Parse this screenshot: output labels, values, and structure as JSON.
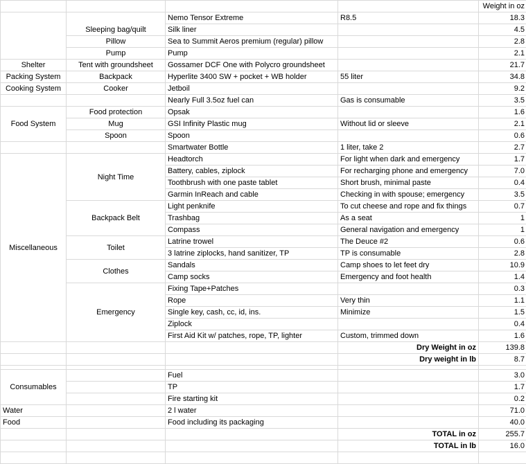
{
  "header": {
    "weight": "Weight in oz"
  },
  "rows": [
    {
      "item": "Nemo Tensor Extreme",
      "note": "R8.5",
      "weight": "18.3",
      "cat": {
        "label": "",
        "span": 4
      },
      "sub": {
        "label": "Sleeping bag/quilt",
        "span": 2,
        "align": "bottom"
      }
    },
    {
      "item": "Silk liner",
      "note": "",
      "weight": "4.5"
    },
    {
      "item": "Sea to Summit Aeros premium (regular) pillow",
      "note": "",
      "weight": "2.8",
      "sub": {
        "label": "Pillow",
        "span": 1
      }
    },
    {
      "item": "Pump",
      "note": "",
      "weight": "2.1",
      "sub": {
        "label": "Pump",
        "span": 1
      }
    },
    {
      "item": "Gossamer DCF One with Polycro groundsheet",
      "note": "",
      "weight": "21.7",
      "cat": {
        "label": "Shelter",
        "span": 1
      },
      "sub": {
        "label": "Tent with groundsheet",
        "span": 1
      }
    },
    {
      "item": "Hyperlite 3400 SW + pocket + WB holder",
      "note": "55 liter",
      "weight": "34.8",
      "cat": {
        "label": "Packing System",
        "span": 1
      },
      "sub": {
        "label": "Backpack",
        "span": 1
      }
    },
    {
      "item": "Jetboil",
      "note": "",
      "weight": "9.2",
      "cat": {
        "label": "Cooking System",
        "span": 1
      },
      "sub": {
        "label": "Cooker",
        "span": 1
      }
    },
    {
      "item": "Nearly Full 3.5oz fuel can",
      "note": "Gas is consumable",
      "weight": "3.5",
      "cat": {
        "label": "",
        "span": 1
      },
      "sub": {
        "label": "",
        "span": 1
      }
    },
    {
      "item": "Opsak",
      "note": "",
      "weight": "1.6",
      "cat": {
        "label": "Food System",
        "span": 3
      },
      "sub": {
        "label": "Food protection",
        "span": 1
      }
    },
    {
      "item": "GSI Infinity Plastic mug",
      "note": "Without lid or sleeve",
      "weight": "2.1",
      "sub": {
        "label": "Mug",
        "span": 1
      }
    },
    {
      "item": "Spoon",
      "note": "",
      "weight": "0.6",
      "sub": {
        "label": "Spoon",
        "span": 1
      }
    },
    {
      "item": "Smartwater Bottle",
      "note": "1 liter,  take 2",
      "weight": "2.7",
      "cat": {
        "label": "",
        "span": 1
      },
      "sub": {
        "label": "",
        "span": 1
      }
    },
    {
      "item": "Headtorch",
      "note": "For light when dark and emergency",
      "weight": "1.7",
      "cat": {
        "label": "Miscellaneous",
        "span": 16
      },
      "sub": {
        "label": "Night Time",
        "span": 4
      }
    },
    {
      "item": "Battery, cables, ziplock",
      "note": "For recharging phone and emergency",
      "weight": "7.0"
    },
    {
      "item": "Toothbrush with one paste tablet",
      "note": "Short brush, minimal paste",
      "weight": "0.4"
    },
    {
      "item": "Garmin InReach and cable",
      "note": "Checking in with spouse; emergency",
      "weight": "3.5"
    },
    {
      "item": "Light penknife",
      "note": "To cut cheese and rope and fix things",
      "weight": "0.7",
      "sub": {
        "label": "Backpack Belt",
        "span": 3
      }
    },
    {
      "item": "Trashbag",
      "note": "As a seat",
      "weight": "1"
    },
    {
      "item": "Compass",
      "note": "General navigation and emergency",
      "weight": "1"
    },
    {
      "item": "Latrine trowel",
      "note": "The Deuce #2",
      "weight": "0.6",
      "sub": {
        "label": "Toilet",
        "span": 2
      }
    },
    {
      "item": "3 latrine ziplocks, hand sanitizer, TP",
      "note": "TP is consumable",
      "weight": "2.8"
    },
    {
      "item": "Sandals",
      "note": "Camp shoes to let feet dry",
      "weight": "10.9",
      "sub": {
        "label": "Clothes",
        "span": 2
      }
    },
    {
      "item": "Camp socks",
      "note": "Emergency and foot health",
      "weight": "1.4"
    },
    {
      "item": "Fixing Tape+Patches",
      "note": "",
      "weight": "0.3",
      "sub": {
        "label": "Emergency",
        "span": 5
      }
    },
    {
      "item": "Rope",
      "note": "Very thin",
      "weight": "1.1"
    },
    {
      "item": "Single key, cash, cc, id, ins.",
      "note": "Minimize",
      "weight": "1.5"
    },
    {
      "item": "Ziplock",
      "note": "",
      "weight": "0.4"
    },
    {
      "item": "First Aid Kit w/ patches, rope, TP, lighter",
      "note": "Custom, trimmed down",
      "weight": "1.6"
    },
    {
      "item": "",
      "summary": "Dry Weight in oz",
      "weight": "139.8",
      "cat": {
        "label": "",
        "span": 1
      },
      "sub": {
        "label": "",
        "span": 1
      }
    },
    {
      "item": "",
      "summary": "Dry weight in lb",
      "weight": "8.7",
      "cat": {
        "label": "",
        "span": 1
      },
      "sub": {
        "label": "",
        "span": 1
      }
    },
    {
      "gap": true
    },
    {
      "item": "Fuel",
      "note": "",
      "weight": "3.0",
      "cat": {
        "label": "Consumables",
        "span": 3
      },
      "sub": {
        "label": "",
        "span": 1
      }
    },
    {
      "item": "TP",
      "note": "",
      "weight": "1.7",
      "sub": {
        "label": "",
        "span": 1
      }
    },
    {
      "item": "Fire starting kit",
      "note": "",
      "weight": "0.2",
      "sub": {
        "label": "",
        "span": 1
      }
    },
    {
      "item": "2 l water",
      "note": "",
      "weight": "71.0",
      "cat": {
        "label": "Water",
        "span": 1,
        "align": "left"
      },
      "sub": {
        "label": "",
        "span": 1
      }
    },
    {
      "item": "Food including its packaging",
      "note": "",
      "weight": "40.0",
      "cat": {
        "label": "Food",
        "span": 1,
        "align": "left"
      },
      "sub": {
        "label": "",
        "span": 1
      }
    },
    {
      "item": "",
      "summary": "TOTAL in oz",
      "weight": "255.7",
      "cat": {
        "label": "",
        "span": 1
      },
      "sub": {
        "label": "",
        "span": 1
      }
    },
    {
      "item": "",
      "summary": "TOTAL in lb",
      "weight": "16.0",
      "cat": {
        "label": "",
        "span": 1
      },
      "sub": {
        "label": "",
        "span": 1
      }
    }
  ]
}
